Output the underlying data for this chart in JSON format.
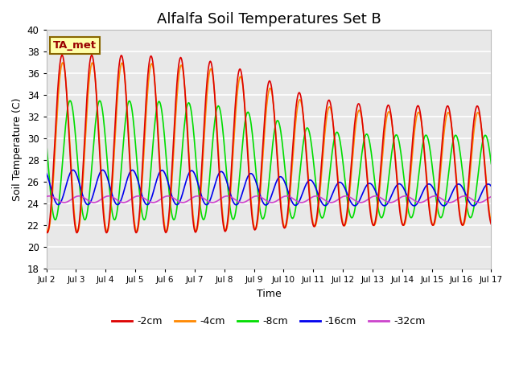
{
  "title": "Alfalfa Soil Temperatures Set B",
  "xlabel": "Time",
  "ylabel": "Soil Temperature (C)",
  "ylim": [
    18,
    40
  ],
  "xlim": [
    0,
    15
  ],
  "xtick_labels": [
    "Jul 2",
    "Jul 3",
    "Jul 4",
    "Jul 5",
    "Jul 6",
    "Jul 7",
    "Jul 8",
    "Jul 9",
    "Jul 10",
    "Jul 11",
    "Jul 12",
    "Jul 13",
    "Jul 14",
    "Jul 15",
    "Jul 16",
    "Jul 17"
  ],
  "legend_labels": [
    "-2cm",
    "-4cm",
    "-8cm",
    "-16cm",
    "-32cm"
  ],
  "line_colors": [
    "#dd0000",
    "#ff8800",
    "#00dd00",
    "#0000ee",
    "#cc44cc"
  ],
  "line_widths": [
    1.2,
    1.2,
    1.2,
    1.2,
    1.2
  ],
  "background_color": "#e8e8e8",
  "fig_color": "#ffffff",
  "annotation_text": "TA_met",
  "annotation_bg": "#ffffaa",
  "annotation_edge": "#886600"
}
